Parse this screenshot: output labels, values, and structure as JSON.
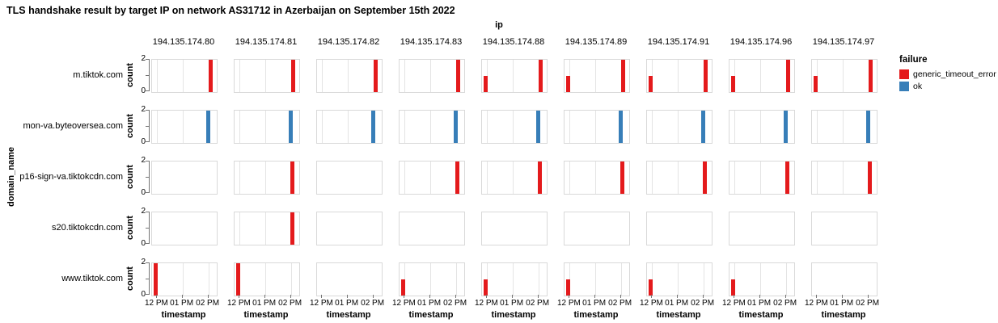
{
  "title": "TLS handshake result by target IP on network AS31712 in Azerbaijan on September 15th 2022",
  "chart_data": {
    "type": "bar",
    "facet": {
      "column_field": "ip",
      "row_field": "domain_name"
    },
    "columns": [
      "194.135.174.80",
      "194.135.174.81",
      "194.135.174.82",
      "194.135.174.83",
      "194.135.174.88",
      "194.135.174.89",
      "194.135.174.91",
      "194.135.174.96",
      "194.135.174.97"
    ],
    "rows": [
      "m.tiktok.com",
      "mon-va.byteoversea.com",
      "p16-sign-va.tiktokcdn.com",
      "s20.tiktokcdn.com",
      "www.tiktok.com"
    ],
    "x_axis": {
      "label": "timestamp",
      "ticks": [
        "12 PM",
        "01 PM",
        "02 PM"
      ],
      "tick_pcts": [
        8,
        47,
        87
      ]
    },
    "y_axis": {
      "label": "count",
      "tick_labels": [
        "2",
        "0"
      ],
      "min": 0,
      "max": 2
    },
    "legend": {
      "title": "failure",
      "items": [
        {
          "label": "generic_timeout_error",
          "color": "#e41a1c"
        },
        {
          "label": "ok",
          "color": "#377eb8"
        }
      ]
    },
    "cells": [
      [
        [
          {
            "time": "02 PM",
            "count": 2,
            "failure": "generic_timeout_error",
            "x_pct": 88
          }
        ],
        [
          {
            "time": "02 PM",
            "count": 2,
            "failure": "generic_timeout_error",
            "x_pct": 88
          }
        ],
        [
          {
            "time": "02 PM",
            "count": 2,
            "failure": "generic_timeout_error",
            "x_pct": 88
          }
        ],
        [
          {
            "time": "02 PM",
            "count": 2,
            "failure": "generic_timeout_error",
            "x_pct": 88
          }
        ],
        [
          {
            "time": "12 PM",
            "count": 1,
            "failure": "generic_timeout_error",
            "x_pct": 3
          },
          {
            "time": "02 PM",
            "count": 2,
            "failure": "generic_timeout_error",
            "x_pct": 88
          }
        ],
        [
          {
            "time": "12 PM",
            "count": 1,
            "failure": "generic_timeout_error",
            "x_pct": 3
          },
          {
            "time": "02 PM",
            "count": 2,
            "failure": "generic_timeout_error",
            "x_pct": 88
          }
        ],
        [
          {
            "time": "12 PM",
            "count": 1,
            "failure": "generic_timeout_error",
            "x_pct": 3
          },
          {
            "time": "02 PM",
            "count": 2,
            "failure": "generic_timeout_error",
            "x_pct": 88
          }
        ],
        [
          {
            "time": "12 PM",
            "count": 1,
            "failure": "generic_timeout_error",
            "x_pct": 3
          },
          {
            "time": "02 PM",
            "count": 2,
            "failure": "generic_timeout_error",
            "x_pct": 88
          }
        ],
        [
          {
            "time": "12 PM",
            "count": 1,
            "failure": "generic_timeout_error",
            "x_pct": 3
          },
          {
            "time": "02 PM",
            "count": 2,
            "failure": "generic_timeout_error",
            "x_pct": 88
          }
        ]
      ],
      [
        [
          {
            "time": "02 PM",
            "count": 2,
            "failure": "ok",
            "x_pct": 84
          }
        ],
        [
          {
            "time": "02 PM",
            "count": 2,
            "failure": "ok",
            "x_pct": 84
          }
        ],
        [
          {
            "time": "02 PM",
            "count": 2,
            "failure": "ok",
            "x_pct": 84
          }
        ],
        [
          {
            "time": "02 PM",
            "count": 2,
            "failure": "ok",
            "x_pct": 84
          }
        ],
        [
          {
            "time": "02 PM",
            "count": 2,
            "failure": "ok",
            "x_pct": 84
          }
        ],
        [
          {
            "time": "02 PM",
            "count": 2,
            "failure": "ok",
            "x_pct": 84
          }
        ],
        [
          {
            "time": "02 PM",
            "count": 2,
            "failure": "ok",
            "x_pct": 84
          }
        ],
        [
          {
            "time": "02 PM",
            "count": 2,
            "failure": "ok",
            "x_pct": 84
          }
        ],
        [
          {
            "time": "02 PM",
            "count": 2,
            "failure": "ok",
            "x_pct": 84
          }
        ]
      ],
      [
        [],
        [
          {
            "time": "02 PM",
            "count": 2,
            "failure": "generic_timeout_error",
            "x_pct": 86
          }
        ],
        [],
        [
          {
            "time": "02 PM",
            "count": 2,
            "failure": "generic_timeout_error",
            "x_pct": 86
          }
        ],
        [
          {
            "time": "02 PM",
            "count": 2,
            "failure": "generic_timeout_error",
            "x_pct": 86
          }
        ],
        [
          {
            "time": "02 PM",
            "count": 2,
            "failure": "generic_timeout_error",
            "x_pct": 86
          }
        ],
        [
          {
            "time": "02 PM",
            "count": 2,
            "failure": "generic_timeout_error",
            "x_pct": 86
          }
        ],
        [
          {
            "time": "02 PM",
            "count": 2,
            "failure": "generic_timeout_error",
            "x_pct": 86
          }
        ],
        [
          {
            "time": "02 PM",
            "count": 2,
            "failure": "generic_timeout_error",
            "x_pct": 86
          }
        ]
      ],
      [
        [],
        [
          {
            "time": "02 PM",
            "count": 2,
            "failure": "generic_timeout_error",
            "x_pct": 86
          }
        ],
        [],
        [],
        [],
        [],
        [],
        [],
        []
      ],
      [
        [
          {
            "time": "12 PM",
            "count": 2,
            "failure": "generic_timeout_error",
            "x_pct": 3
          }
        ],
        [
          {
            "time": "12 PM",
            "count": 2,
            "failure": "generic_timeout_error",
            "x_pct": 3
          }
        ],
        [],
        [
          {
            "time": "12 PM",
            "count": 1,
            "failure": "generic_timeout_error",
            "x_pct": 3
          }
        ],
        [
          {
            "time": "12 PM",
            "count": 1,
            "failure": "generic_timeout_error",
            "x_pct": 3
          }
        ],
        [
          {
            "time": "12 PM",
            "count": 1,
            "failure": "generic_timeout_error",
            "x_pct": 3
          }
        ],
        [
          {
            "time": "12 PM",
            "count": 1,
            "failure": "generic_timeout_error",
            "x_pct": 3
          }
        ],
        [
          {
            "time": "12 PM",
            "count": 1,
            "failure": "generic_timeout_error",
            "x_pct": 3
          }
        ],
        []
      ]
    ]
  }
}
